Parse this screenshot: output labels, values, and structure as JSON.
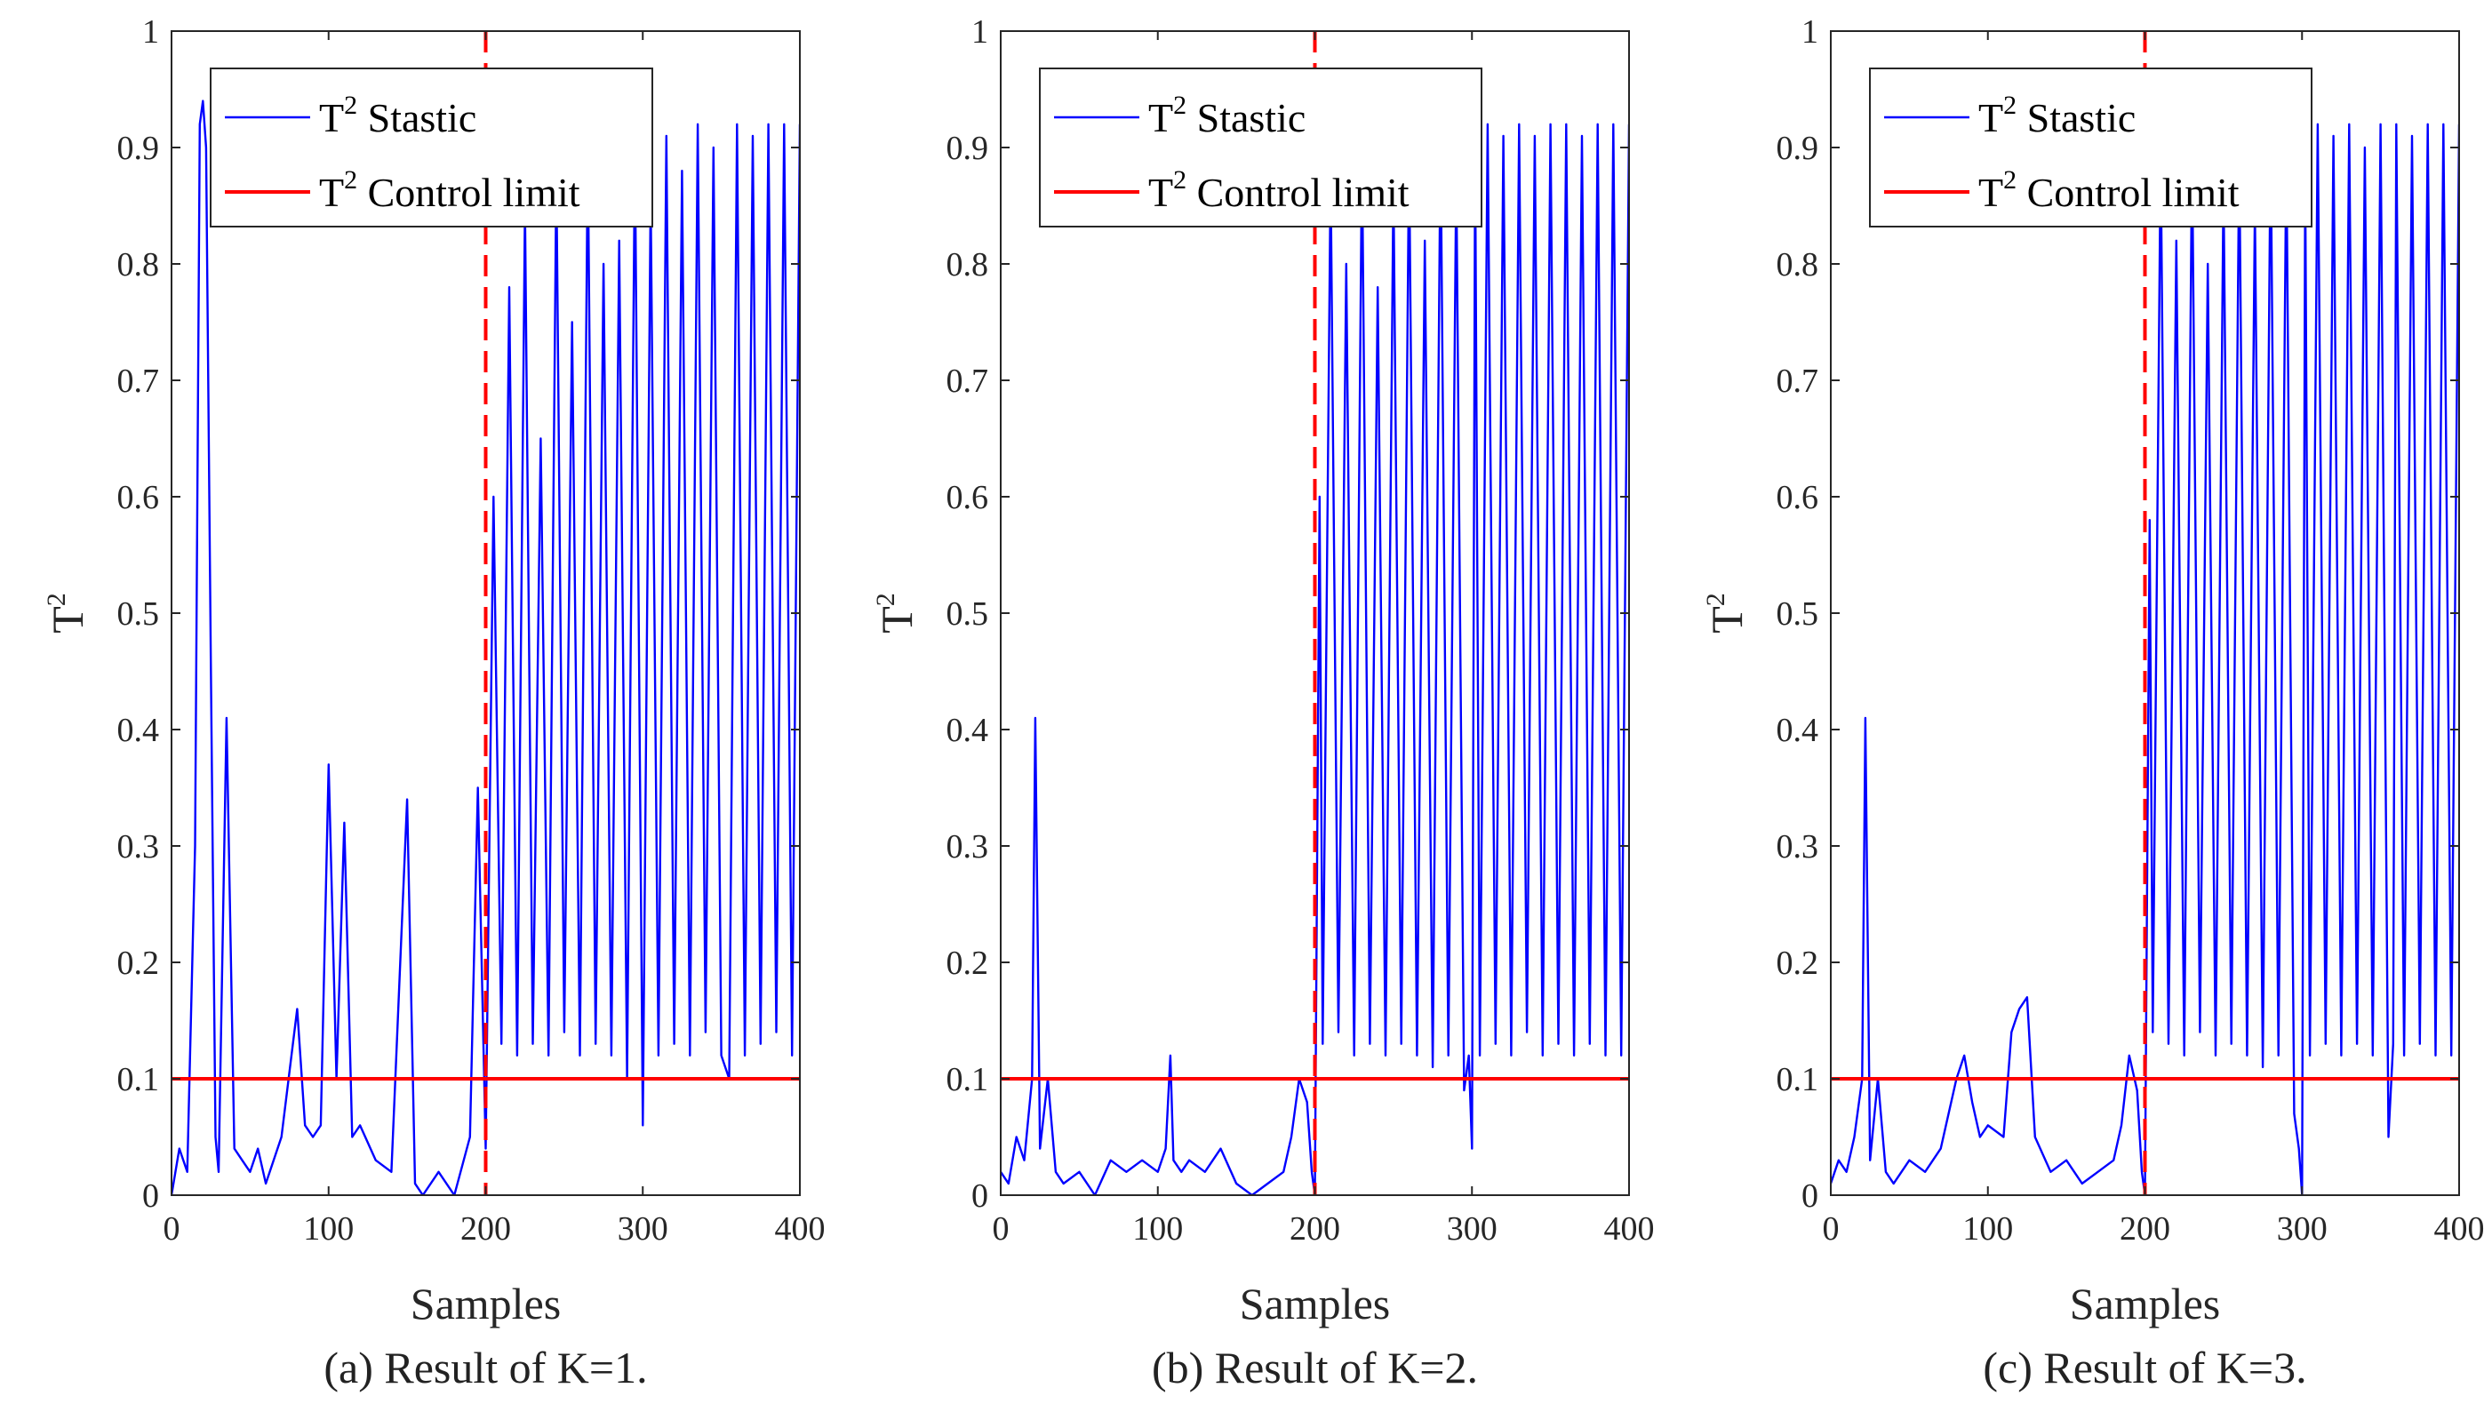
{
  "colors": {
    "statistic": "#0000ff",
    "control_limit": "#ff0000",
    "fault_marker": "#ff0000",
    "axes": "#262626"
  },
  "chart_data": [
    {
      "type": "line",
      "caption": "(a) Result of K=1.",
      "xlabel": "Samples",
      "ylabel": "T",
      "ylabel_sup": "2",
      "xlim": [
        0,
        400
      ],
      "ylim": [
        0,
        1
      ],
      "xticks": [
        0,
        100,
        200,
        300,
        400
      ],
      "xtick_labels": [
        "0",
        "100",
        "200",
        "300",
        "400"
      ],
      "yticks": [
        0,
        0.1,
        0.2,
        0.3,
        0.4,
        0.5,
        0.6,
        0.7,
        0.8,
        0.9,
        1
      ],
      "ytick_labels": [
        "0",
        "0.1",
        "0.2",
        "0.3",
        "0.4",
        "0.5",
        "0.6",
        "0.7",
        "0.8",
        "0.9",
        "1"
      ],
      "control_limit": 0.1,
      "fault_sample": 200,
      "legend": {
        "position": "top",
        "entries": [
          {
            "base": "T",
            "sup": "2",
            "rest": " Stastic"
          },
          {
            "base": "T",
            "sup": "2",
            "rest": " Control limit"
          }
        ]
      },
      "series": [
        {
          "name": "T2 Stastic",
          "x": [
            0,
            5,
            10,
            15,
            18,
            20,
            22,
            25,
            28,
            30,
            35,
            40,
            45,
            50,
            55,
            60,
            70,
            80,
            85,
            90,
            95,
            100,
            105,
            110,
            115,
            120,
            130,
            140,
            150,
            155,
            160,
            170,
            180,
            190,
            195,
            200,
            205,
            210,
            215,
            220,
            225,
            230,
            235,
            240,
            245,
            250,
            255,
            260,
            265,
            270,
            275,
            280,
            285,
            290,
            295,
            300,
            305,
            310,
            315,
            320,
            325,
            330,
            335,
            340,
            345,
            350,
            355,
            360,
            365,
            370,
            375,
            380,
            385,
            390,
            395,
            400
          ],
          "y": [
            0.0,
            0.04,
            0.02,
            0.3,
            0.92,
            0.94,
            0.9,
            0.46,
            0.05,
            0.02,
            0.41,
            0.04,
            0.03,
            0.02,
            0.04,
            0.01,
            0.05,
            0.16,
            0.06,
            0.05,
            0.06,
            0.37,
            0.1,
            0.32,
            0.05,
            0.06,
            0.03,
            0.02,
            0.34,
            0.01,
            0.0,
            0.02,
            0.0,
            0.05,
            0.35,
            0.04,
            0.6,
            0.13,
            0.78,
            0.12,
            0.85,
            0.13,
            0.65,
            0.12,
            0.88,
            0.14,
            0.75,
            0.12,
            0.9,
            0.13,
            0.8,
            0.12,
            0.82,
            0.1,
            0.9,
            0.06,
            0.86,
            0.12,
            0.91,
            0.13,
            0.88,
            0.12,
            0.92,
            0.14,
            0.9,
            0.12,
            0.1,
            0.92,
            0.12,
            0.91,
            0.13,
            0.92,
            0.14,
            0.92,
            0.12,
            0.92
          ]
        }
      ]
    },
    {
      "type": "line",
      "caption": "(b) Result of K=2.",
      "xlabel": "Samples",
      "ylabel": "T",
      "ylabel_sup": "2",
      "xlim": [
        0,
        400
      ],
      "ylim": [
        0,
        1
      ],
      "xticks": [
        0,
        100,
        200,
        300,
        400
      ],
      "xtick_labels": [
        "0",
        "100",
        "200",
        "300",
        "400"
      ],
      "yticks": [
        0,
        0.1,
        0.2,
        0.3,
        0.4,
        0.5,
        0.6,
        0.7,
        0.8,
        0.9,
        1
      ],
      "ytick_labels": [
        "0",
        "0.1",
        "0.2",
        "0.3",
        "0.4",
        "0.5",
        "0.6",
        "0.7",
        "0.8",
        "0.9",
        "1"
      ],
      "control_limit": 0.1,
      "fault_sample": 200,
      "legend": {
        "position": "top",
        "entries": [
          {
            "base": "T",
            "sup": "2",
            "rest": " Stastic"
          },
          {
            "base": "T",
            "sup": "2",
            "rest": " Control limit"
          }
        ]
      },
      "series": [
        {
          "name": "T2 Stastic",
          "x": [
            0,
            5,
            10,
            15,
            20,
            22,
            25,
            30,
            35,
            40,
            50,
            60,
            70,
            80,
            90,
            100,
            105,
            108,
            110,
            115,
            120,
            130,
            140,
            150,
            160,
            170,
            180,
            185,
            190,
            195,
            198,
            200,
            203,
            205,
            210,
            215,
            220,
            225,
            230,
            235,
            240,
            245,
            250,
            255,
            260,
            265,
            270,
            275,
            280,
            285,
            290,
            295,
            298,
            300,
            302,
            305,
            310,
            315,
            320,
            325,
            330,
            335,
            340,
            345,
            350,
            355,
            360,
            365,
            370,
            375,
            380,
            385,
            390,
            395,
            400
          ],
          "y": [
            0.02,
            0.01,
            0.05,
            0.03,
            0.1,
            0.41,
            0.04,
            0.1,
            0.02,
            0.01,
            0.02,
            0.0,
            0.03,
            0.02,
            0.03,
            0.02,
            0.04,
            0.12,
            0.03,
            0.02,
            0.03,
            0.02,
            0.04,
            0.01,
            0.0,
            0.01,
            0.02,
            0.05,
            0.1,
            0.08,
            0.02,
            0.0,
            0.6,
            0.13,
            0.88,
            0.14,
            0.8,
            0.12,
            0.9,
            0.13,
            0.78,
            0.12,
            0.87,
            0.13,
            0.9,
            0.12,
            0.82,
            0.11,
            0.91,
            0.12,
            0.88,
            0.09,
            0.12,
            0.04,
            0.9,
            0.12,
            0.92,
            0.13,
            0.91,
            0.12,
            0.92,
            0.14,
            0.91,
            0.12,
            0.92,
            0.13,
            0.92,
            0.12,
            0.91,
            0.13,
            0.92,
            0.12,
            0.92,
            0.12,
            0.92
          ]
        }
      ]
    },
    {
      "type": "line",
      "caption": "(c) Result of K=3.",
      "xlabel": "Samples",
      "ylabel": "T",
      "ylabel_sup": "2",
      "xlim": [
        0,
        400
      ],
      "ylim": [
        0,
        1
      ],
      "xticks": [
        0,
        100,
        200,
        300,
        400
      ],
      "xtick_labels": [
        "0",
        "100",
        "200",
        "300",
        "400"
      ],
      "yticks": [
        0,
        0.1,
        0.2,
        0.3,
        0.4,
        0.5,
        0.6,
        0.7,
        0.8,
        0.9,
        1
      ],
      "ytick_labels": [
        "0",
        "0.1",
        "0.2",
        "0.3",
        "0.4",
        "0.5",
        "0.6",
        "0.7",
        "0.8",
        "0.9",
        "1"
      ],
      "control_limit": 0.1,
      "fault_sample": 200,
      "legend": {
        "position": "top",
        "entries": [
          {
            "base": "T",
            "sup": "2",
            "rest": " Stastic"
          },
          {
            "base": "T",
            "sup": "2",
            "rest": " Control limit"
          }
        ]
      },
      "series": [
        {
          "name": "T2 Stastic",
          "x": [
            0,
            5,
            10,
            15,
            20,
            22,
            25,
            30,
            35,
            40,
            50,
            60,
            70,
            80,
            85,
            90,
            95,
            100,
            110,
            115,
            120,
            125,
            130,
            140,
            150,
            160,
            170,
            180,
            185,
            190,
            195,
            198,
            200,
            203,
            205,
            210,
            215,
            220,
            225,
            230,
            235,
            240,
            245,
            250,
            255,
            260,
            265,
            270,
            275,
            280,
            285,
            290,
            295,
            298,
            300,
            302,
            305,
            310,
            315,
            320,
            325,
            330,
            335,
            340,
            345,
            350,
            355,
            358,
            360,
            365,
            370,
            375,
            380,
            385,
            390,
            395,
            400
          ],
          "y": [
            0.01,
            0.03,
            0.02,
            0.05,
            0.1,
            0.41,
            0.03,
            0.1,
            0.02,
            0.01,
            0.03,
            0.02,
            0.04,
            0.1,
            0.12,
            0.08,
            0.05,
            0.06,
            0.05,
            0.14,
            0.16,
            0.17,
            0.05,
            0.02,
            0.03,
            0.01,
            0.02,
            0.03,
            0.06,
            0.12,
            0.09,
            0.02,
            0.0,
            0.58,
            0.14,
            0.9,
            0.13,
            0.82,
            0.12,
            0.9,
            0.14,
            0.8,
            0.12,
            0.87,
            0.13,
            0.9,
            0.12,
            0.85,
            0.11,
            0.91,
            0.12,
            0.9,
            0.07,
            0.04,
            0.0,
            0.88,
            0.12,
            0.92,
            0.13,
            0.91,
            0.12,
            0.92,
            0.13,
            0.9,
            0.12,
            0.92,
            0.05,
            0.13,
            0.92,
            0.12,
            0.91,
            0.13,
            0.92,
            0.12,
            0.92,
            0.12,
            0.92
          ]
        }
      ]
    }
  ]
}
